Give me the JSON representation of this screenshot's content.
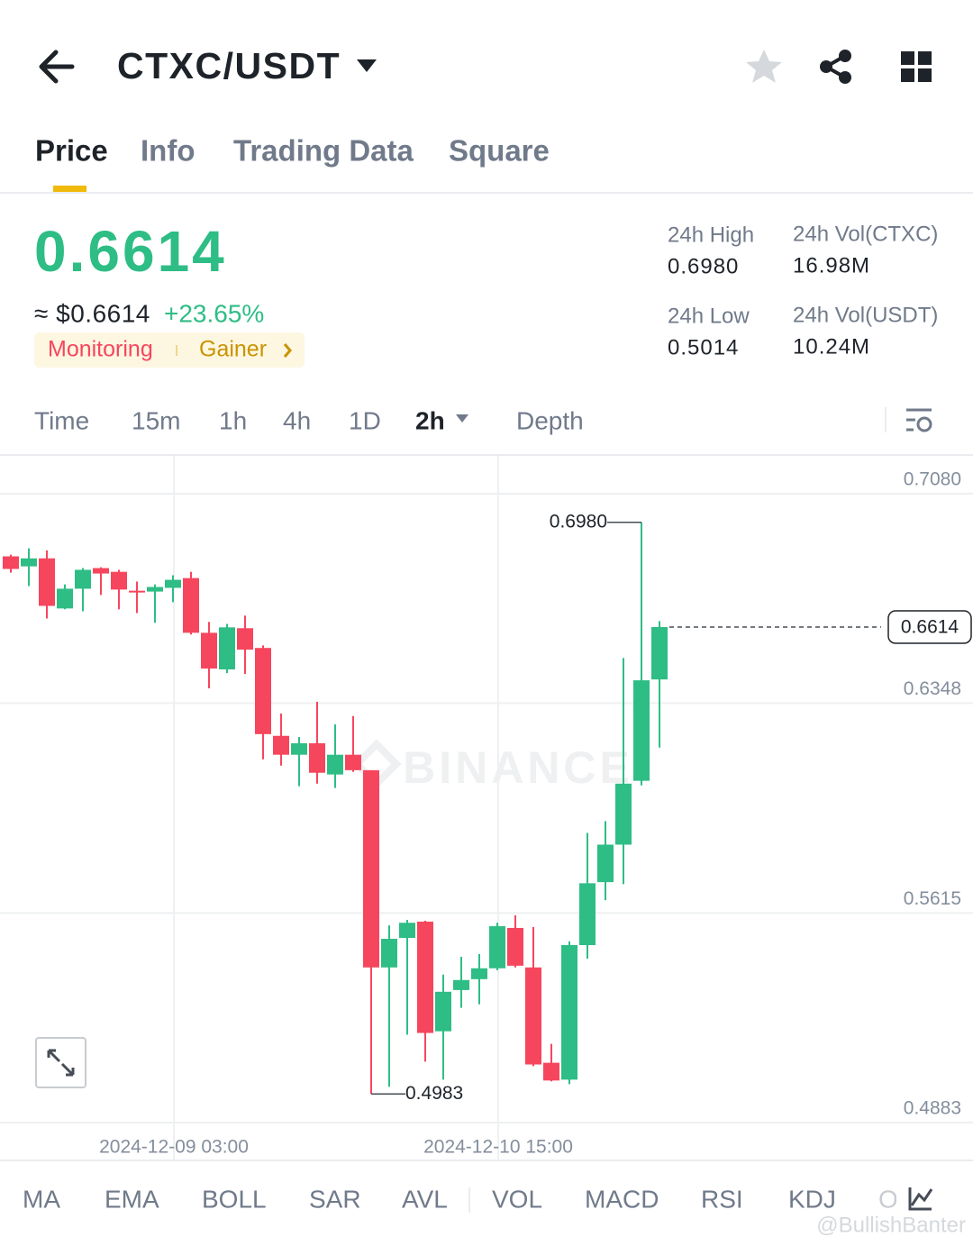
{
  "header": {
    "pair": "CTXC/USDT"
  },
  "tabs": [
    "Price",
    "Info",
    "Trading Data",
    "Square"
  ],
  "price": {
    "last": "0.6614",
    "fiat": "≈ $0.6614",
    "change": "+23.65%"
  },
  "tags": [
    "Monitoring",
    "Gainer"
  ],
  "stats": [
    {
      "label": "24h High",
      "value": "0.6980"
    },
    {
      "label": "24h Vol(CTXC)",
      "value": "16.98M"
    },
    {
      "label": "24h Low",
      "value": "0.5014"
    },
    {
      "label": "24h Vol(USDT)",
      "value": "10.24M"
    }
  ],
  "intervals": [
    "Time",
    "15m",
    "1h",
    "4h",
    "1D",
    "2h",
    "Depth"
  ],
  "chart_data": {
    "type": "candlestick",
    "watermark": "BINANCE",
    "categories": [
      null,
      null,
      null,
      null,
      null,
      null,
      null,
      null,
      null,
      "2024-12-09 03:00",
      null,
      null,
      null,
      null,
      null,
      null,
      null,
      null,
      null,
      null,
      null,
      null,
      null,
      null,
      null,
      null,
      null,
      "2024-12-10 15:00",
      null,
      null,
      null,
      null,
      null,
      null,
      null,
      null,
      null
    ],
    "open": [
      0.6861,
      0.6826,
      0.6854,
      0.6679,
      0.6748,
      0.682,
      0.6807,
      0.6741,
      0.6738,
      0.6751,
      0.6785,
      0.6594,
      0.6466,
      0.661,
      0.6541,
      0.6234,
      0.6168,
      0.6208,
      0.6099,
      0.6168,
      0.6114,
      0.5425,
      0.5528,
      0.5585,
      0.5202,
      0.5346,
      0.5384,
      0.5422,
      0.5563,
      0.5425,
      0.5092,
      0.5033,
      0.5503,
      0.5723,
      0.5854,
      0.6077,
      0.6431
    ],
    "high": [
      0.6867,
      0.6889,
      0.6882,
      0.6763,
      0.682,
      0.6823,
      0.6814,
      0.6773,
      0.6763,
      0.6795,
      0.6807,
      0.6632,
      0.6625,
      0.6654,
      0.655,
      0.6312,
      0.623,
      0.6353,
      0.6274,
      0.6303,
      0.6114,
      0.5572,
      0.5591,
      0.5588,
      0.54,
      0.5462,
      0.5472,
      0.5581,
      0.5607,
      0.5566,
      0.5158,
      0.5516,
      0.5895,
      0.5936,
      0.6506,
      0.698,
      0.6635
    ],
    "low": [
      0.6804,
      0.6757,
      0.6644,
      0.6676,
      0.6669,
      0.6726,
      0.6676,
      0.6663,
      0.6629,
      0.6701,
      0.6588,
      0.64,
      0.6453,
      0.645,
      0.6152,
      0.613,
      0.6058,
      0.6067,
      0.6052,
      0.6108,
      0.4983,
      0.5008,
      0.519,
      0.5096,
      0.5033,
      0.5284,
      0.5296,
      0.5415,
      0.5425,
      0.508,
      0.5027,
      0.5017,
      0.5456,
      0.566,
      0.5716,
      0.6061,
      0.6193
    ],
    "close": [
      0.6817,
      0.6854,
      0.6688,
      0.6748,
      0.6814,
      0.6801,
      0.6745,
      0.6735,
      0.6754,
      0.6779,
      0.6594,
      0.6469,
      0.6613,
      0.6535,
      0.624,
      0.6168,
      0.6208,
      0.6105,
      0.6168,
      0.6114,
      0.5425,
      0.5525,
      0.5581,
      0.5196,
      0.534,
      0.5381,
      0.5422,
      0.5569,
      0.5431,
      0.5086,
      0.503,
      0.5503,
      0.5719,
      0.5854,
      0.6067,
      0.6428,
      0.6614
    ],
    "up_color": "#2ebd85",
    "down_color": "#f6465d",
    "ylim": [
      0.4754,
      0.7212
    ],
    "yticks": [
      {
        "value": 0.708,
        "label": "0.7080"
      },
      {
        "value": 0.6348,
        "label": "0.6348"
      },
      {
        "value": 0.5615,
        "label": "0.5615"
      },
      {
        "value": 0.4883,
        "label": "0.4883"
      }
    ],
    "grid": true,
    "annotations": {
      "high": "0.6980",
      "low": "0.4983",
      "last": "0.6614"
    }
  },
  "indicators": [
    "MA",
    "EMA",
    "BOLL",
    "SAR",
    "AVL",
    "VOL",
    "MACD",
    "RSI",
    "KDJ",
    "O"
  ],
  "watermark": "@BullishBanter"
}
